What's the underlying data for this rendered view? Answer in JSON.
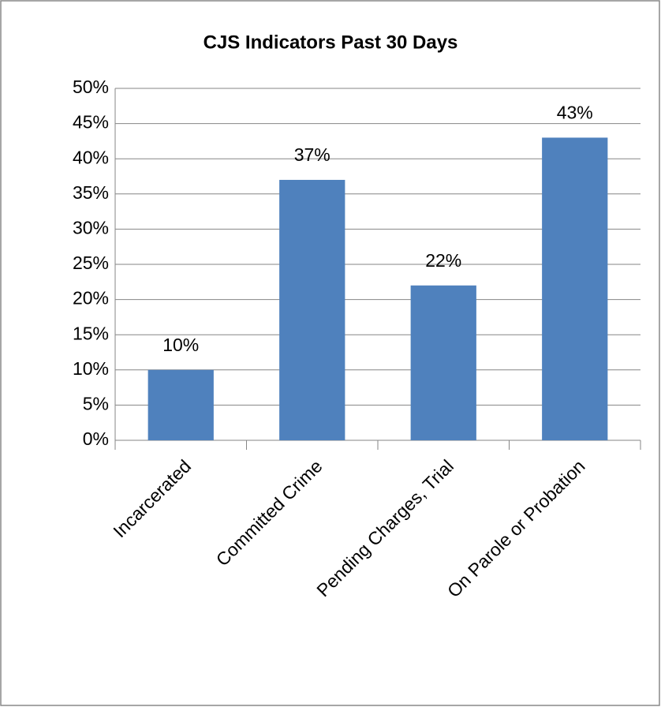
{
  "chart_data": {
    "type": "bar",
    "title": "CJS Indicators Past 30 Days",
    "categories": [
      "Incarcerated",
      "Committed Crime",
      "Pending Charges, Trial",
      "On Parole or Probation"
    ],
    "values": [
      10,
      37,
      22,
      43
    ],
    "value_labels": [
      "10%",
      "37%",
      "22%",
      "43%"
    ],
    "color": "#4f81bd",
    "ylim": [
      0,
      50
    ],
    "yticks": [
      {
        "value": 0,
        "label": "0%"
      },
      {
        "value": 5,
        "label": "5%"
      },
      {
        "value": 10,
        "label": "10%"
      },
      {
        "value": 15,
        "label": "15%"
      },
      {
        "value": 20,
        "label": "20%"
      },
      {
        "value": 25,
        "label": "25%"
      },
      {
        "value": 30,
        "label": "30%"
      },
      {
        "value": 35,
        "label": "35%"
      },
      {
        "value": 40,
        "label": "40%"
      },
      {
        "value": 45,
        "label": "45%"
      },
      {
        "value": 50,
        "label": "50%"
      }
    ],
    "grid": true
  }
}
